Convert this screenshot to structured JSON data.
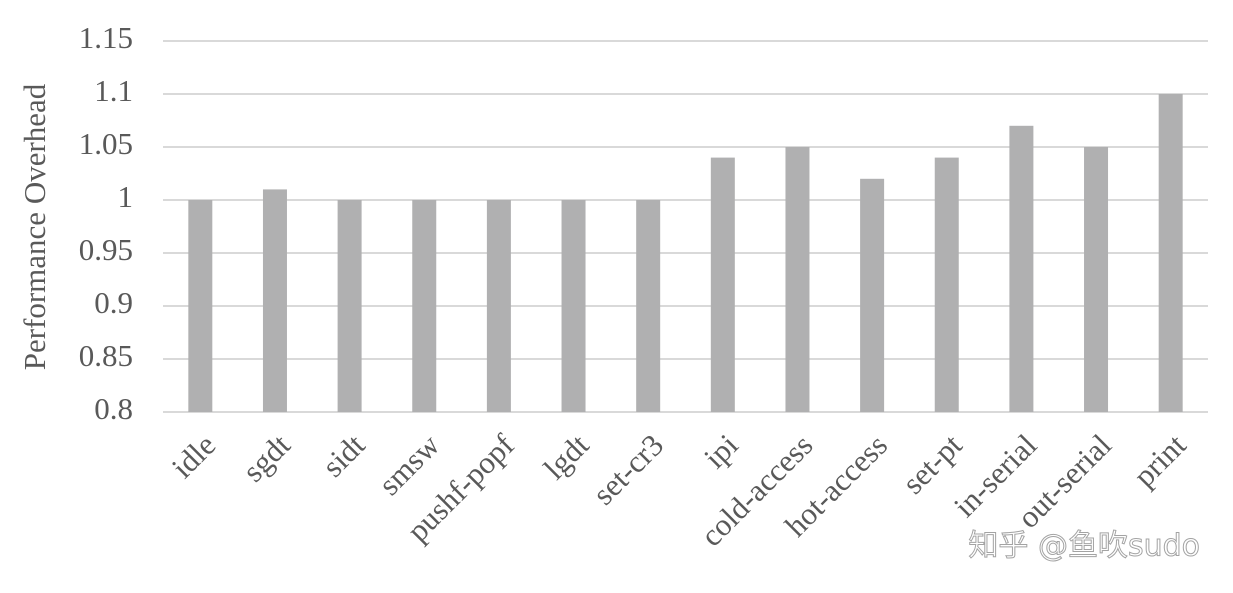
{
  "chart_data": {
    "type": "bar",
    "y_label": "Performance Overhead",
    "categories": [
      "idle",
      "sgdt",
      "sidt",
      "smsw",
      "pushf-popf",
      "lgdt",
      "set-cr3",
      "ipi",
      "cold-access",
      "hot-access",
      "set-pt",
      "in-serial",
      "out-serial",
      "print"
    ],
    "values": [
      1,
      1.01,
      1,
      1,
      1,
      1,
      1,
      1.04,
      1.05,
      1.02,
      1.04,
      1.07,
      1.05,
      1.1
    ],
    "color": "#b0b0b1",
    "ylim": [
      0.8,
      1.15
    ],
    "yticks": [
      0.8,
      0.85,
      0.9,
      0.95,
      1,
      1.05,
      1.1,
      1.15
    ],
    "grid": true
  },
  "watermark": "知乎 @鱼吹sudo"
}
